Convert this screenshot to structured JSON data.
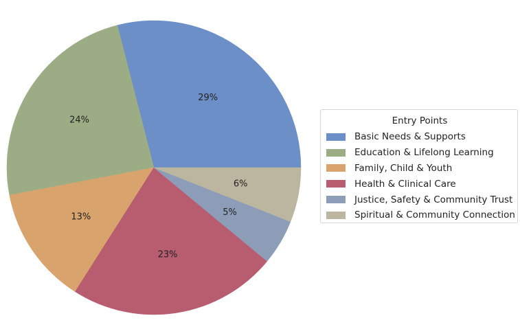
{
  "chart_data": {
    "type": "pie",
    "legend_title": "Entry Points",
    "legend_position": "right",
    "start_angle_deg": 0,
    "direction": "counterclockwise",
    "slices": [
      {
        "label": "Basic Needs & Supports",
        "value": 29,
        "display": "29%",
        "color": "#6b8fc6"
      },
      {
        "label": "Education & Lifelong Learning",
        "value": 24,
        "display": "24%",
        "color": "#9cad86"
      },
      {
        "label": "Family, Child & Youth",
        "value": 13,
        "display": "13%",
        "color": "#d9a36e"
      },
      {
        "label": "Health & Clinical Care",
        "value": 23,
        "display": "23%",
        "color": "#b85c70"
      },
      {
        "label": "Justice, Safety & Community Trust",
        "value": 5,
        "display": "5%",
        "color": "#8d9db8"
      },
      {
        "label": "Spiritual & Community Connection",
        "value": 6,
        "display": "6%",
        "color": "#bcb6a0"
      }
    ]
  }
}
